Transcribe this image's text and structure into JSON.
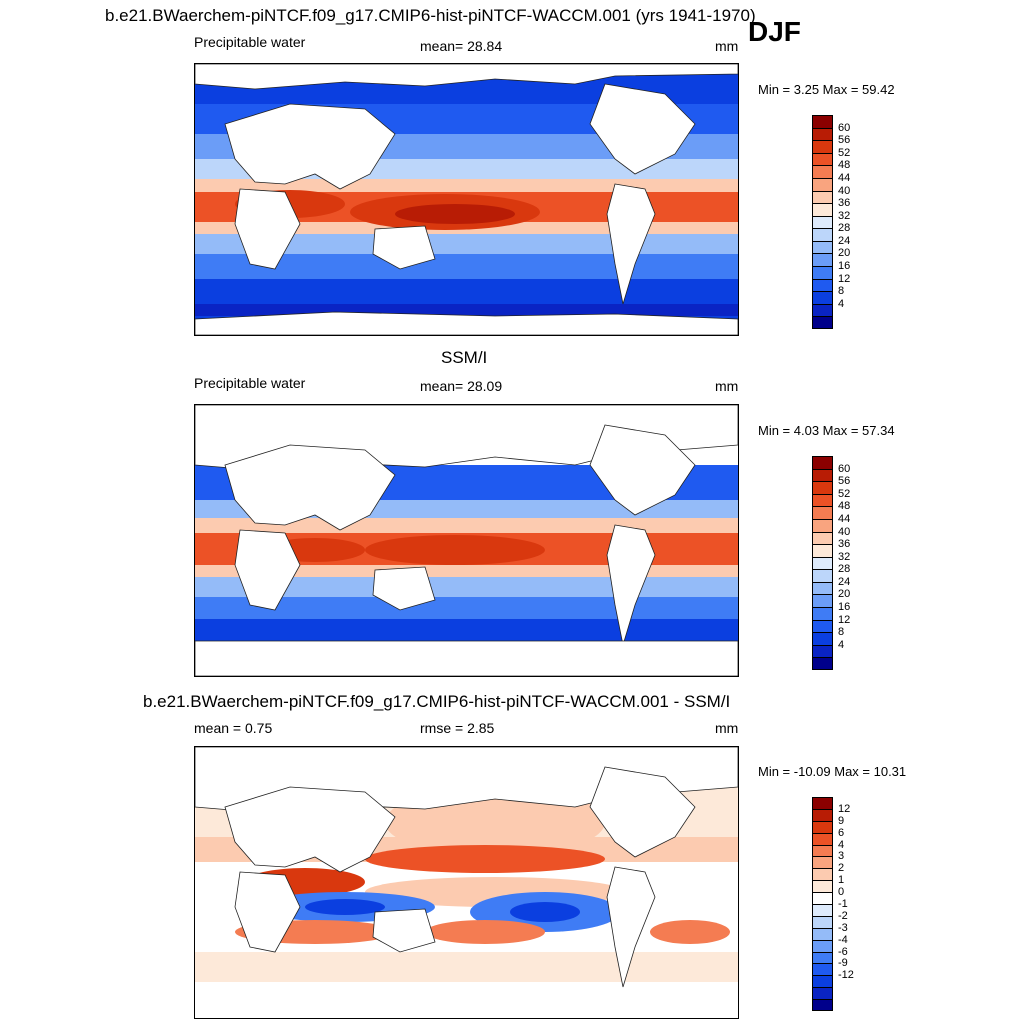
{
  "header": {
    "case_title": "b.e21.BWaerchem-piNTCF.f09_g17.CMIP6-hist-piNTCF-WACCM.001 (yrs 1941-1970)",
    "season": "DJF"
  },
  "panels": [
    {
      "id": "model",
      "title": "",
      "left_label": "Precipitable water",
      "center_label": "mean=  28.84",
      "units": "mm",
      "stats": "Min =   3.25 Max =  59.42",
      "colorbar_ticks": [
        "60",
        "56",
        "52",
        "48",
        "44",
        "40",
        "36",
        "32",
        "28",
        "24",
        "20",
        "16",
        "12",
        "8",
        "4"
      ]
    },
    {
      "id": "obs",
      "title": "SSM/I",
      "left_label": "Precipitable water",
      "center_label": "mean=  28.09",
      "units": "mm",
      "stats": "Min =   4.03 Max =  57.34",
      "colorbar_ticks": [
        "60",
        "56",
        "52",
        "48",
        "44",
        "40",
        "36",
        "32",
        "28",
        "24",
        "20",
        "16",
        "12",
        "8",
        "4"
      ]
    },
    {
      "id": "diff",
      "title": "b.e21.BWaerchem-piNTCF.f09_g17.CMIP6-hist-piNTCF-WACCM.001 - SSM/I",
      "left_label": "mean =   0.75",
      "center_label": "rmse =   2.85",
      "units": "mm",
      "stats": "Min = -10.09 Max =  10.31",
      "colorbar_ticks": [
        "12",
        "9",
        "6",
        "4",
        "3",
        "2",
        "1",
        "0",
        "-1",
        "-2",
        "-3",
        "-4",
        "-6",
        "-9",
        "-12"
      ]
    }
  ],
  "colors": {
    "abs_scale": [
      "#00008b",
      "#0a24c4",
      "#0b3fe0",
      "#1f5af0",
      "#3f7cf5",
      "#6b9df7",
      "#94bbf8",
      "#bcd6fa",
      "#deebfc",
      "#fde9d9",
      "#fccbb0",
      "#f9a47f",
      "#f47c52",
      "#ec5226",
      "#d9380e",
      "#b81c05",
      "#8b0000"
    ],
    "diff_scale": [
      "#00008b",
      "#0a24c4",
      "#0b3fe0",
      "#1f5af0",
      "#3f7cf5",
      "#6b9df7",
      "#94bbf8",
      "#bcd6fa",
      "#deebfc",
      "#ffffff",
      "#fde9d9",
      "#fccbb0",
      "#f9a47f",
      "#f47c52",
      "#ec5226",
      "#d9380e",
      "#b81c05",
      "#8b0000"
    ]
  }
}
